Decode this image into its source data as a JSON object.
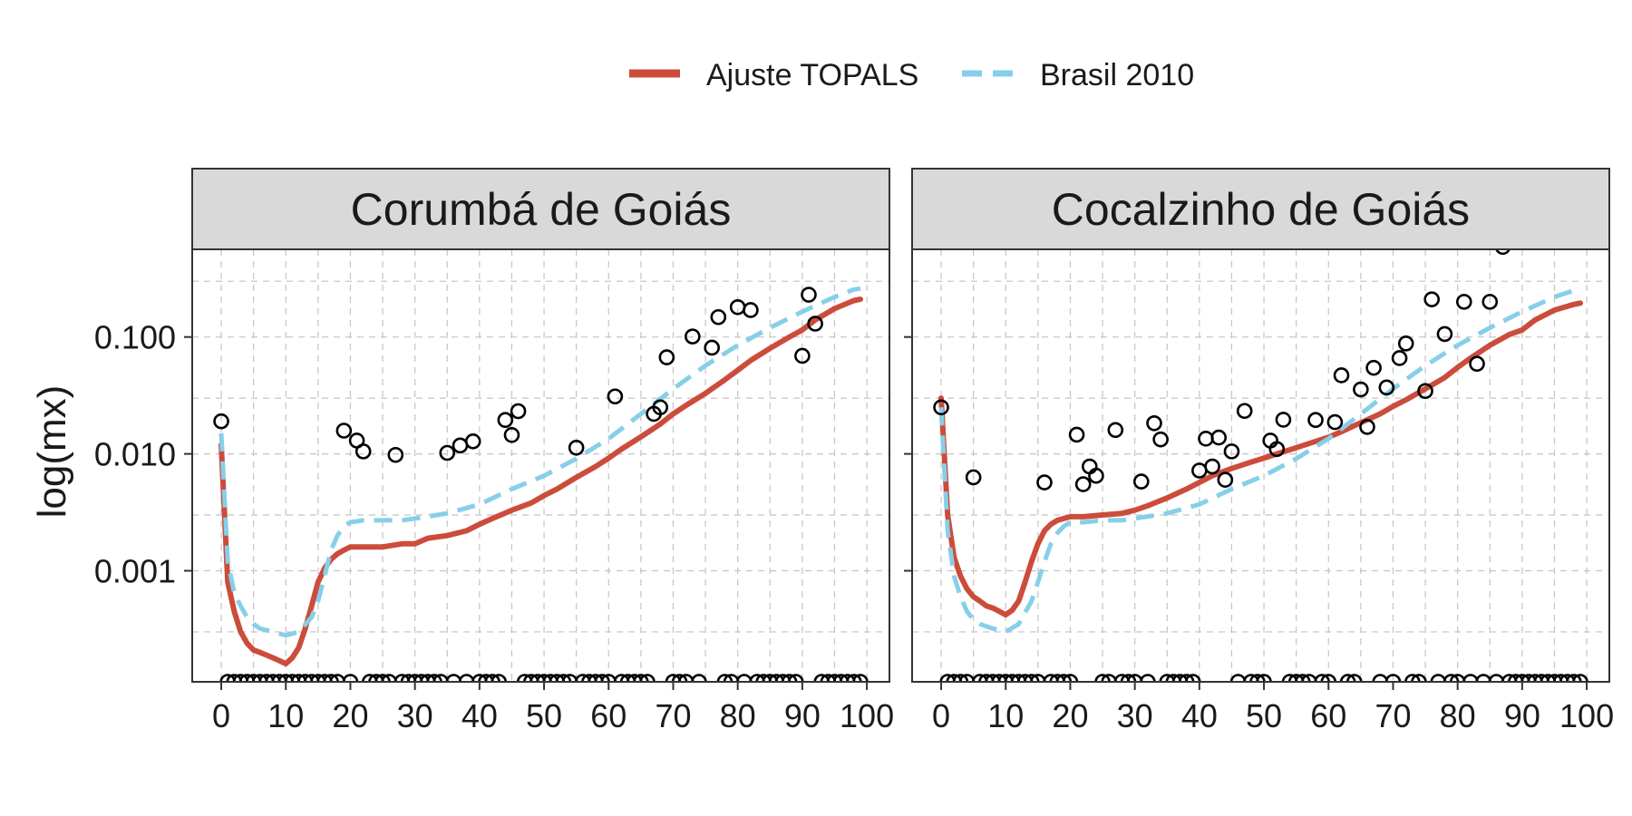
{
  "legend": {
    "position": "top",
    "items": [
      {
        "label": "Ajuste TOPALS",
        "color": "#cc4c3b",
        "style": "solid"
      },
      {
        "label": "Brasil 2010",
        "color": "#87cfe8",
        "style": "dashed"
      }
    ]
  },
  "ylabel": "log(mx)",
  "chart_data": [
    {
      "type": "line",
      "facet": "Corumbá de Goiás",
      "x_ticks": [
        0,
        10,
        20,
        30,
        40,
        50,
        60,
        70,
        80,
        90,
        100
      ],
      "y_ticks": [
        0.001,
        0.01,
        0.1
      ],
      "y_tick_labels": [
        "0.001",
        "0.010",
        "0.100"
      ],
      "xlim": [
        -4.5,
        103.5
      ],
      "ylim_log10": [
        -3.95,
        -0.25
      ],
      "grid": true,
      "y_scale": "log",
      "series": [
        {
          "name": "Ajuste TOPALS",
          "color": "#cc4c3b",
          "style": "solid",
          "x": [
            0,
            1,
            2,
            3,
            4,
            5,
            6,
            7,
            8,
            9,
            10,
            11,
            12,
            13,
            14,
            15,
            16,
            17,
            18,
            19,
            20,
            22,
            25,
            28,
            30,
            32,
            35,
            38,
            40,
            42,
            45,
            48,
            50,
            52,
            55,
            58,
            60,
            62,
            65,
            68,
            70,
            72,
            75,
            78,
            80,
            82,
            85,
            88,
            90,
            92,
            95,
            98,
            99
          ],
          "y": [
            0.012,
            0.0008,
            0.00045,
            0.0003,
            0.00024,
            0.00021,
            0.0002,
            0.00019,
            0.00018,
            0.00017,
            0.00016,
            0.00018,
            0.00022,
            0.00032,
            0.0005,
            0.0008,
            0.00105,
            0.00125,
            0.0014,
            0.0015,
            0.0016,
            0.0016,
            0.0016,
            0.0017,
            0.0017,
            0.0019,
            0.002,
            0.0022,
            0.0025,
            0.0028,
            0.0033,
            0.0038,
            0.0044,
            0.005,
            0.0063,
            0.0078,
            0.0092,
            0.011,
            0.014,
            0.018,
            0.022,
            0.026,
            0.033,
            0.043,
            0.052,
            0.063,
            0.08,
            0.1,
            0.115,
            0.14,
            0.175,
            0.205,
            0.21
          ]
        },
        {
          "name": "Brasil 2010",
          "color": "#87cfe8",
          "style": "dashed",
          "x": [
            0,
            1,
            2,
            3,
            4,
            5,
            6,
            8,
            10,
            12,
            14,
            15,
            16,
            17,
            18,
            19,
            20,
            22,
            25,
            28,
            30,
            35,
            40,
            45,
            50,
            55,
            60,
            65,
            70,
            75,
            80,
            85,
            90,
            95,
            98,
            99
          ],
          "y": [
            0.015,
            0.0012,
            0.00065,
            0.0005,
            0.0004,
            0.00035,
            0.00032,
            0.0003,
            0.00028,
            0.0003,
            0.0004,
            0.00055,
            0.0009,
            0.0015,
            0.002,
            0.0024,
            0.0026,
            0.0027,
            0.0027,
            0.0027,
            0.0028,
            0.0031,
            0.0037,
            0.005,
            0.0065,
            0.0091,
            0.0135,
            0.022,
            0.036,
            0.057,
            0.085,
            0.12,
            0.165,
            0.22,
            0.255,
            0.26
          ]
        },
        {
          "name": "Observed",
          "style": "points",
          "x": [
            0,
            19,
            21,
            22,
            27,
            35,
            37,
            39,
            44,
            45,
            46,
            55,
            61,
            67,
            68,
            69,
            73,
            76,
            77,
            80,
            82,
            90,
            91,
            92
          ],
          "y": [
            0.019,
            0.0158,
            0.013,
            0.0105,
            0.0098,
            0.0102,
            0.0118,
            0.0128,
            0.0195,
            0.0145,
            0.0232,
            0.0113,
            0.031,
            0.022,
            0.025,
            0.067,
            0.101,
            0.081,
            0.148,
            0.18,
            0.17,
            0.069,
            0.23,
            0.13
          ]
        },
        {
          "name": "Zero",
          "style": "points",
          "x": [
            1,
            2,
            3,
            4,
            5,
            6,
            7,
            8,
            9,
            10,
            11,
            12,
            13,
            14,
            15,
            16,
            17,
            18,
            20,
            23,
            24,
            25,
            26,
            28,
            29,
            30,
            31,
            32,
            33,
            34,
            36,
            38,
            40,
            41,
            42,
            43,
            47,
            48,
            49,
            50,
            51,
            52,
            53,
            54,
            56,
            57,
            58,
            59,
            60,
            62,
            63,
            64,
            65,
            66,
            70,
            71,
            72,
            74,
            78,
            79,
            81,
            83,
            84,
            85,
            86,
            87,
            88,
            89,
            93,
            94,
            95,
            96,
            97,
            98,
            99
          ]
        }
      ]
    },
    {
      "type": "line",
      "facet": "Cocalzinho de Goiás",
      "x_ticks": [
        0,
        10,
        20,
        30,
        40,
        50,
        60,
        70,
        80,
        90,
        100
      ],
      "y_ticks": [
        0.001,
        0.01,
        0.1
      ],
      "y_tick_labels": [
        "0.001",
        "0.010",
        "0.100"
      ],
      "xlim": [
        -4.5,
        103.5
      ],
      "ylim_log10": [
        -3.95,
        -0.25
      ],
      "grid": true,
      "y_scale": "log",
      "series": [
        {
          "name": "Ajuste TOPALS",
          "color": "#cc4c3b",
          "style": "solid",
          "x": [
            0,
            1,
            2,
            3,
            4,
            5,
            6,
            7,
            8,
            9,
            10,
            11,
            12,
            13,
            14,
            15,
            16,
            17,
            18,
            19,
            20,
            22,
            25,
            28,
            30,
            32,
            35,
            38,
            40,
            42,
            45,
            48,
            50,
            52,
            55,
            58,
            60,
            62,
            65,
            68,
            70,
            72,
            75,
            78,
            80,
            82,
            85,
            88,
            90,
            92,
            95,
            98,
            99
          ],
          "y": [
            0.03,
            0.003,
            0.0013,
            0.0009,
            0.0007,
            0.0006,
            0.00055,
            0.0005,
            0.00048,
            0.00045,
            0.00042,
            0.00046,
            0.00055,
            0.0008,
            0.0012,
            0.0017,
            0.0022,
            0.0025,
            0.0027,
            0.0028,
            0.0029,
            0.0029,
            0.003,
            0.0031,
            0.0033,
            0.0036,
            0.0042,
            0.005,
            0.0057,
            0.0065,
            0.0075,
            0.0085,
            0.0092,
            0.01,
            0.0113,
            0.0128,
            0.0139,
            0.0155,
            0.0185,
            0.022,
            0.0255,
            0.029,
            0.036,
            0.045,
            0.055,
            0.066,
            0.085,
            0.105,
            0.115,
            0.14,
            0.17,
            0.19,
            0.195
          ]
        },
        {
          "name": "Brasil 2010",
          "color": "#87cfe8",
          "style": "dashed",
          "x": [
            0,
            1,
            2,
            3,
            4,
            5,
            6,
            8,
            10,
            12,
            14,
            15,
            16,
            17,
            18,
            19,
            20,
            22,
            25,
            28,
            30,
            35,
            40,
            45,
            50,
            55,
            60,
            65,
            70,
            75,
            80,
            85,
            90,
            95,
            98,
            99
          ],
          "y": [
            0.025,
            0.0022,
            0.0009,
            0.0006,
            0.00045,
            0.00038,
            0.00035,
            0.00032,
            0.0003,
            0.00035,
            0.00055,
            0.0008,
            0.0012,
            0.0017,
            0.0021,
            0.0024,
            0.0026,
            0.0026,
            0.0027,
            0.0027,
            0.0028,
            0.0031,
            0.0037,
            0.005,
            0.0065,
            0.0091,
            0.0135,
            0.022,
            0.036,
            0.057,
            0.085,
            0.12,
            0.165,
            0.22,
            0.25,
            0.255
          ]
        },
        {
          "name": "Observed",
          "style": "points",
          "x": [
            0,
            5,
            16,
            21,
            22,
            23,
            24,
            27,
            31,
            33,
            34,
            40,
            41,
            42,
            43,
            44,
            45,
            47,
            51,
            52,
            53,
            58,
            61,
            62,
            65,
            66,
            67,
            69,
            71,
            72,
            75,
            76,
            78,
            81,
            83,
            85,
            87
          ],
          "y": [
            0.025,
            0.0063,
            0.0057,
            0.0146,
            0.0055,
            0.0078,
            0.0065,
            0.016,
            0.0058,
            0.0183,
            0.0133,
            0.0072,
            0.0135,
            0.0078,
            0.0138,
            0.006,
            0.0105,
            0.0233,
            0.013,
            0.011,
            0.0196,
            0.0195,
            0.0187,
            0.047,
            0.0356,
            0.017,
            0.0545,
            0.037,
            0.066,
            0.088,
            0.0345,
            0.21,
            0.106,
            0.2,
            0.059,
            0.2,
            0.59
          ]
        },
        {
          "name": "Zero",
          "style": "points",
          "x": [
            1,
            2,
            3,
            4,
            6,
            7,
            8,
            9,
            10,
            11,
            12,
            13,
            14,
            15,
            17,
            18,
            19,
            20,
            25,
            26,
            28,
            29,
            30,
            32,
            35,
            36,
            37,
            38,
            39,
            46,
            48,
            49,
            50,
            54,
            55,
            56,
            57,
            59,
            60,
            63,
            64,
            68,
            70,
            73,
            74,
            77,
            79,
            80,
            82,
            84,
            86,
            88,
            89,
            90,
            91,
            92,
            93,
            94,
            95,
            96,
            97,
            98,
            99
          ]
        }
      ]
    }
  ]
}
